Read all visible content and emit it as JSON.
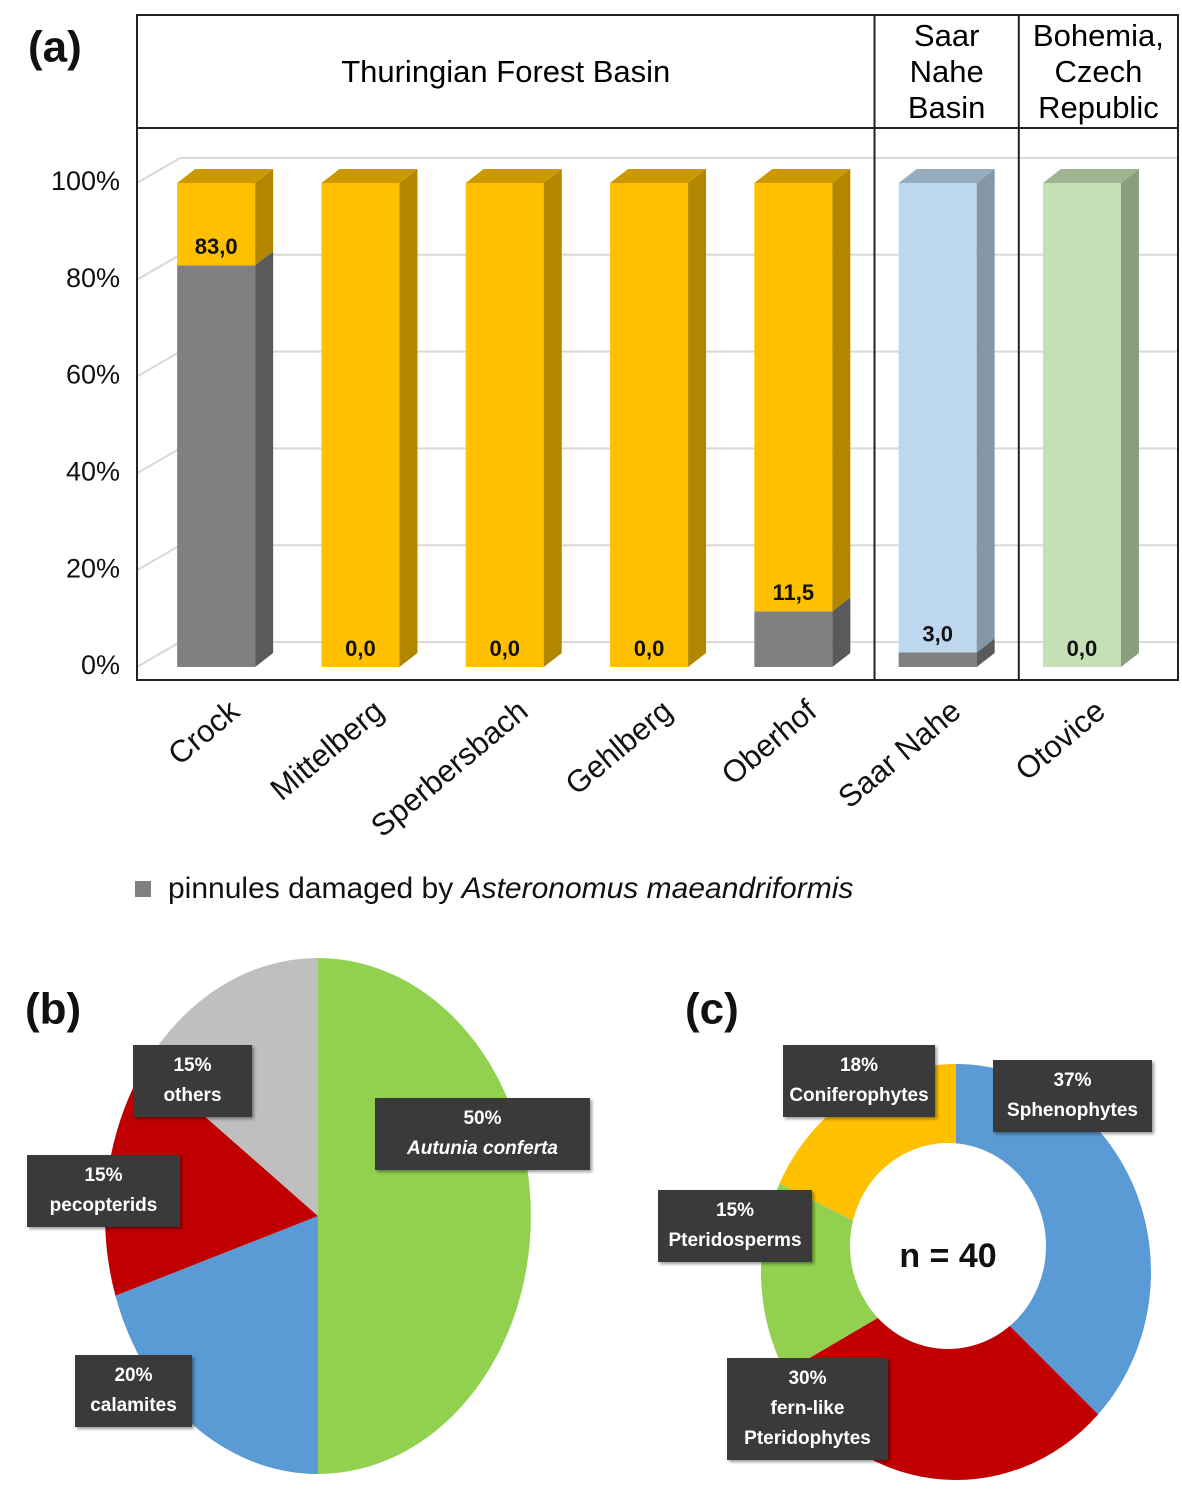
{
  "chart_data": [
    {
      "type": "bar3d",
      "title": "(a)",
      "stacked": true,
      "groups": [
        {
          "label": "Thuringian Forest Basin",
          "count": 5
        },
        {
          "label": "Saar Nahe Basin",
          "count": 1
        },
        {
          "label": "Bohemia, Czech Republic",
          "count": 1
        }
      ],
      "categories": [
        "Crock",
        "Mittelberg",
        "Sperbersbach",
        "Gehlberg",
        "Oberhof",
        "Saar Nahe",
        "Otovice"
      ],
      "series": [
        {
          "name": "pinnules damaged by",
          "name_italic": "Asteronomus maeandriformis",
          "color": "#808080",
          "values": [
            83,
            0,
            0,
            0,
            11.5,
            3,
            0
          ],
          "value_labels": [
            "83,0",
            "0,0",
            "0,0",
            "0,0",
            "11,5",
            "3,0",
            "0,0"
          ]
        },
        {
          "colors": [
            "#ffc000",
            "#ffc000",
            "#ffc000",
            "#ffc000",
            "#ffc000",
            "#bdd7ee",
            "#c5e0b4"
          ],
          "values": [
            17,
            100,
            100,
            100,
            88.5,
            97,
            100
          ]
        }
      ],
      "ylim": [
        0,
        100
      ],
      "yticks": [
        {
          "value": 0,
          "label": "0%"
        },
        {
          "value": 20,
          "label": "20%"
        },
        {
          "value": 40,
          "label": "40%"
        },
        {
          "value": 60,
          "label": "60%"
        },
        {
          "value": 80,
          "label": "80%"
        },
        {
          "value": 100,
          "label": "100%"
        }
      ],
      "grid": true
    },
    {
      "type": "pie",
      "title": "(b)",
      "categories": [
        "Autunia conferta",
        "calamites",
        "pecopterids",
        "others"
      ],
      "values": [
        50,
        20,
        15,
        15
      ],
      "value_labels": [
        "50%",
        "20%",
        "15%",
        "15%"
      ],
      "colors": [
        "#92d050",
        "#5b9bd5",
        "#c00000",
        "#bfbfbf"
      ],
      "italic": [
        true,
        false,
        false,
        false
      ]
    },
    {
      "type": "donut",
      "title": "(c)",
      "center_label": "n = 40",
      "categories": [
        "Sphenophytes",
        "fern-like Pteridophytes",
        "Pteridosperms",
        "Coniferophytes"
      ],
      "values": [
        37,
        30,
        15,
        18
      ],
      "value_labels": [
        "37%",
        "30%",
        "15%",
        "18%"
      ],
      "colors": [
        "#5b9bd5",
        "#c00000",
        "#92d050",
        "#ffc000"
      ]
    }
  ]
}
